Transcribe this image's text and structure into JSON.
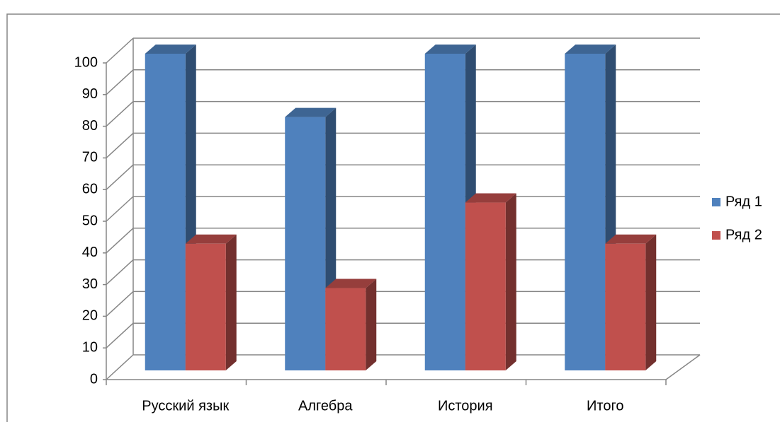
{
  "chart_data": {
    "type": "bar3d",
    "categories": [
      "Русский язык",
      "Алгебра",
      "История",
      "Итого"
    ],
    "series": [
      {
        "name": "Ряд 1",
        "color": "#4f81bd",
        "values": [
          100,
          80,
          100,
          100
        ]
      },
      {
        "name": "Ряд 2",
        "color": "#c0504d",
        "values": [
          40,
          26,
          53,
          40
        ]
      }
    ],
    "ylim": [
      0,
      100
    ],
    "yticks": [
      0,
      10,
      20,
      30,
      40,
      50,
      60,
      70,
      80,
      90,
      100
    ],
    "grid": true,
    "legend": "right"
  }
}
